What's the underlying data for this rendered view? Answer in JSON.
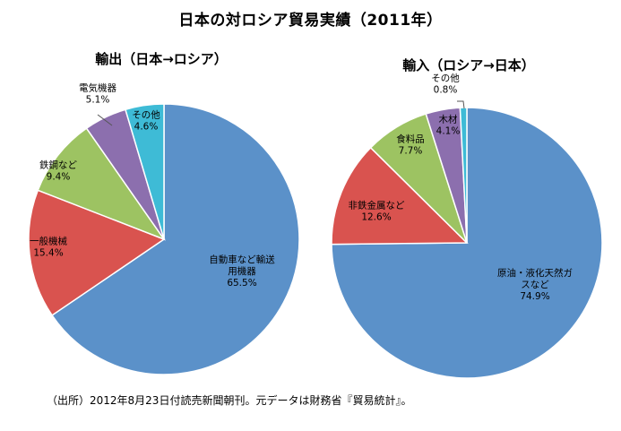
{
  "title": "日本の対ロシア貿易実績（2011年）",
  "source_note": "（出所）2012年8月23日付読売新聞朝刊。元データは財務省『貿易統計』。",
  "chart_data": [
    {
      "type": "pie",
      "title": "輸出（日本→ロシア）",
      "slices": [
        {
          "label": "自動車など輸送用機器",
          "label_lines": [
            "自動車など輸送",
            "用機器"
          ],
          "value": 65.5,
          "display": "65.5%",
          "color": "#5b91c9"
        },
        {
          "label": "一般機械",
          "label_lines": [
            "一般機械"
          ],
          "value": 15.4,
          "display": "15.4%",
          "color": "#d9534f"
        },
        {
          "label": "鉄鋼など",
          "label_lines": [
            "鉄鋼など"
          ],
          "value": 9.4,
          "display": "9.4%",
          "color": "#9dc362"
        },
        {
          "label": "電気機器",
          "label_lines": [
            "電気機器"
          ],
          "value": 5.1,
          "display": "5.1%",
          "color": "#8c6fae"
        },
        {
          "label": "その他",
          "label_lines": [
            "その他"
          ],
          "value": 4.6,
          "display": "4.6%",
          "color": "#3ebbd6"
        }
      ]
    },
    {
      "type": "pie",
      "title": "輸入（ロシア→日本）",
      "slices": [
        {
          "label": "原油・液化天然ガスなど",
          "label_lines": [
            "原油・液化天然ガ",
            "スなど"
          ],
          "value": 74.9,
          "display": "74.9%",
          "color": "#5b91c9"
        },
        {
          "label": "非鉄金属など",
          "label_lines": [
            "非鉄金属など"
          ],
          "value": 12.6,
          "display": "12.6%",
          "color": "#d9534f"
        },
        {
          "label": "食料品",
          "label_lines": [
            "食料品"
          ],
          "value": 7.7,
          "display": "7.7%",
          "color": "#9dc362"
        },
        {
          "label": "木材",
          "label_lines": [
            "木材"
          ],
          "value": 4.1,
          "display": "4.1%",
          "color": "#8c6fae"
        },
        {
          "label": "その他",
          "label_lines": [
            "その他"
          ],
          "value": 0.8,
          "display": "0.8%",
          "color": "#3ebbd6"
        }
      ]
    }
  ]
}
